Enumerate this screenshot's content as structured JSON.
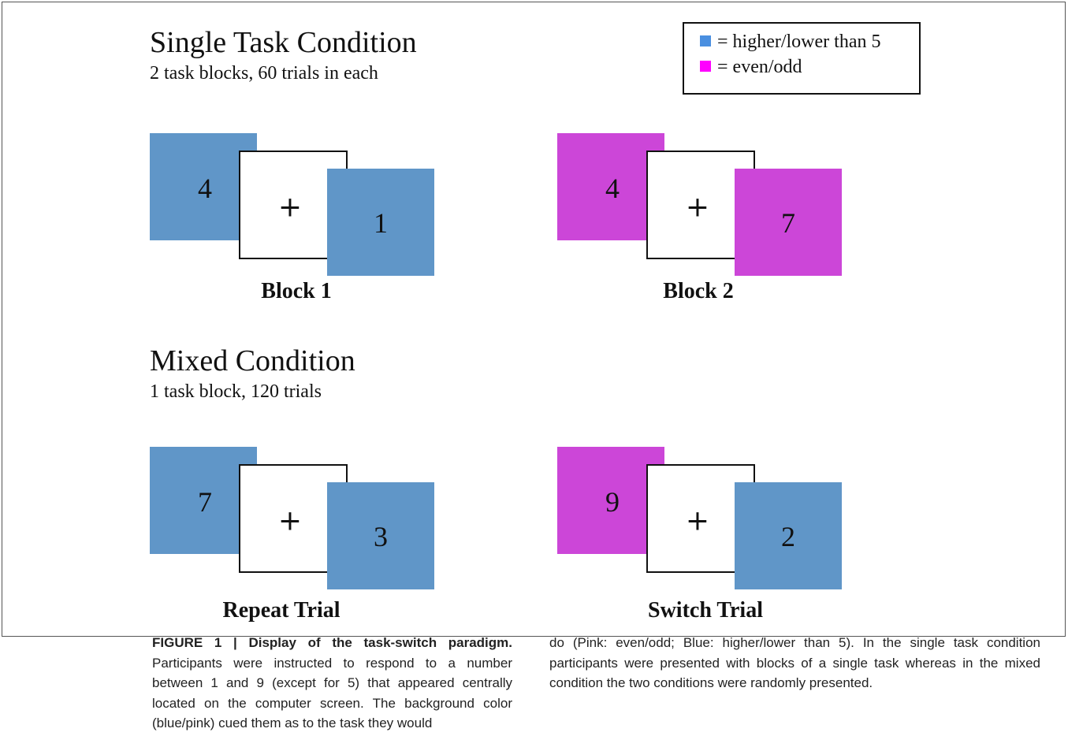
{
  "legend": [
    {
      "label": "= higher/lower than 5"
    },
    {
      "label": "= even/odd"
    }
  ],
  "sections": [
    {
      "title": "Single Task Condition",
      "subtitle": "2 task blocks, 60 trials in each",
      "trials": [
        {
          "label": "Block 1",
          "first": "4",
          "center": "+",
          "last": "1"
        },
        {
          "label": "Block 2",
          "first": "4",
          "center": "+",
          "last": "7"
        }
      ]
    },
    {
      "title": "Mixed Condition",
      "subtitle": "1 task block, 120 trials",
      "trials": [
        {
          "label": "Repeat Trial",
          "first": "7",
          "center": "+",
          "last": "3"
        },
        {
          "label": "Switch Trial",
          "first": "9",
          "center": "+",
          "last": "2"
        }
      ]
    }
  ],
  "caption": {
    "title": "FIGURE 1 | Display of the task-switch paradigm.",
    "left": "Participants were instructed to respond to a number between 1 and 9 (except for 5) that appeared centrally located on the computer screen. The background color (blue/pink) cued them as to the task they would",
    "right": "do (Pink: even/odd; Blue: higher/lower than 5). In the single task condition participants were presented with blocks of a single task whereas in the mixed condition the two conditions were randomly presented."
  }
}
